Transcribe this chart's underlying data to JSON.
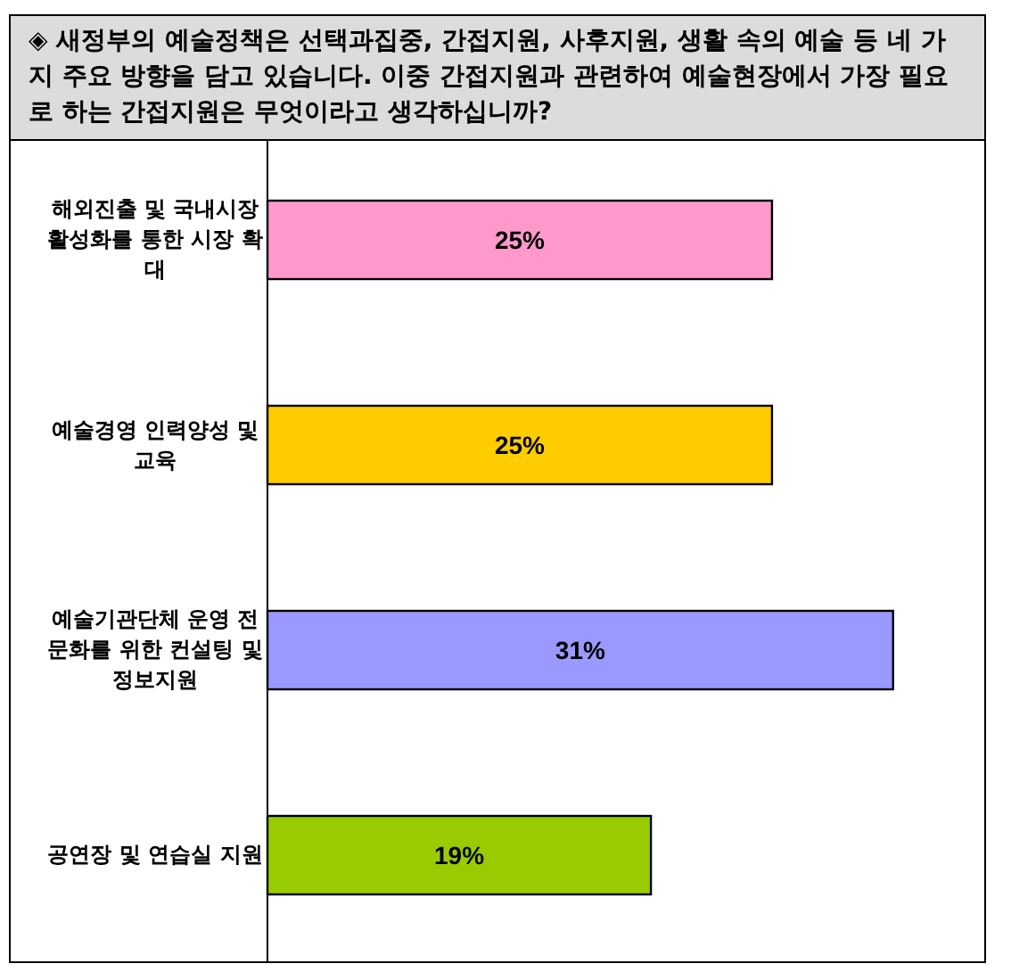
{
  "chart_data": {
    "type": "bar",
    "orientation": "horizontal",
    "title": "◈ 새정부의 예술정책은 선택과집중, 간접지원, 사후지원, 생활 속의 예술 등 네 가지 주요 방향을 담고 있습니다. 이중 간접지원과 관련하여 예술현장에서 가장 필요로 하는 간접지원은 무엇이라고 생각하십니까?",
    "categories": [
      "해외진출 및 국내시장 활성화를 통한 시장 확대",
      "예술경영 인력양성 및 교육",
      "예술기관단체 운영 전문화를 위한 컨설팅 및 정보지원",
      "공연장 및 연습실 지원"
    ],
    "values": [
      25,
      25,
      31,
      19
    ],
    "colors": [
      "#ff99cc",
      "#ffcc00",
      "#9999ff",
      "#99cc00"
    ],
    "value_labels": [
      "25%",
      "25%",
      "31%",
      "19%"
    ]
  }
}
